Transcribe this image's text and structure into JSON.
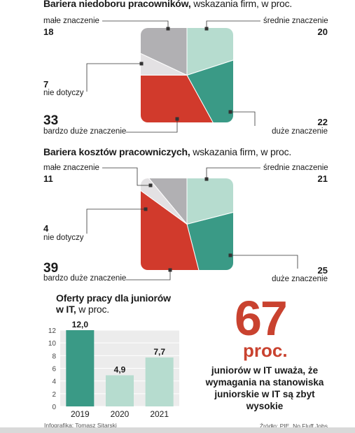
{
  "chart_data": [
    {
      "type": "pie",
      "title_bold": "Bariera niedoboru pracowników,",
      "title_rest": " wskazania firm, w proc.",
      "slices": [
        {
          "label": "małe znaczenie",
          "value": 18,
          "color": "#b1b0b3"
        },
        {
          "label": "średnie znaczenie",
          "value": 20,
          "color": "#b6dccf"
        },
        {
          "label": "duże znaczenie",
          "value": 22,
          "color": "#3a9a86"
        },
        {
          "label": "bardzo duże znaczenie",
          "value": 33,
          "color": "#d13a2c"
        },
        {
          "label": "nie dotyczy",
          "value": 7,
          "color": "#e3e1e3"
        }
      ]
    },
    {
      "type": "pie",
      "title_bold": "Bariera kosztów pracowniczych,",
      "title_rest": " wskazania firm, w proc.",
      "slices": [
        {
          "label": "małe znaczenie",
          "value": 11,
          "color": "#b1b0b3"
        },
        {
          "label": "średnie znaczenie",
          "value": 21,
          "color": "#b6dccf"
        },
        {
          "label": "duże znaczenie",
          "value": 25,
          "color": "#3a9a86"
        },
        {
          "label": "bardzo duże znaczenie",
          "value": 39,
          "color": "#d13a2c"
        },
        {
          "label": "nie dotyczy",
          "value": 4,
          "color": "#e3e1e3"
        }
      ]
    },
    {
      "type": "bar",
      "title_bold": "Oferty pracy dla juniorów w IT,",
      "title_line1": "Oferty pracy dla juniorów",
      "title_line2_bold": "w IT,",
      "title_line2_rest": " w proc.",
      "categories": [
        "2019",
        "2020",
        "2021"
      ],
      "values": [
        12.0,
        4.9,
        7.7
      ],
      "value_labels": [
        "12,0",
        "4,9",
        "7,7"
      ],
      "bar_colors": [
        "#3a9a86",
        "#b6dccf",
        "#b6dccf"
      ],
      "ylim": [
        0,
        12
      ],
      "yticks": [
        "0",
        "2",
        "4",
        "6",
        "8",
        "10",
        "12"
      ]
    }
  ],
  "highlight": {
    "number": "67",
    "unit": "proc.",
    "text": "juniorów w IT uważa, że wymagania na stanowiska juniorskie w IT są zbyt wysokie"
  },
  "footer": {
    "credit": "Infografika: Tomasz Sitarski",
    "source": "Źródło: PIE, No Fluff Jobs"
  }
}
